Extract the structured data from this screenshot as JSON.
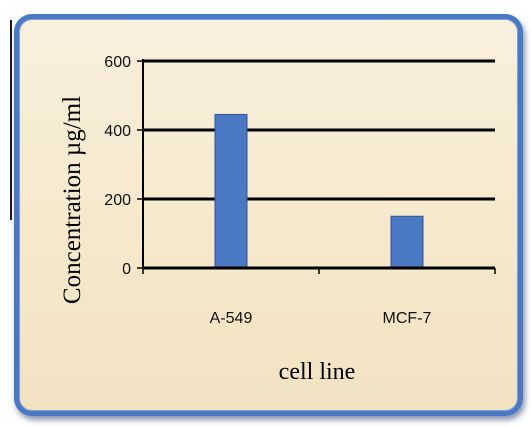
{
  "chart_data": {
    "type": "bar",
    "categories": [
      "A-549",
      "MCF-7"
    ],
    "values": [
      445,
      150
    ],
    "xlabel": "cell line",
    "ylabel": "Concentration µg/ml",
    "ylim": [
      0,
      600
    ],
    "yticks": [
      0,
      200,
      400,
      600
    ],
    "grid": true,
    "legend": "none",
    "colors": {
      "bar": "#4a78c2",
      "bar_edge": "#2f5597",
      "gridline": "#000000"
    }
  }
}
